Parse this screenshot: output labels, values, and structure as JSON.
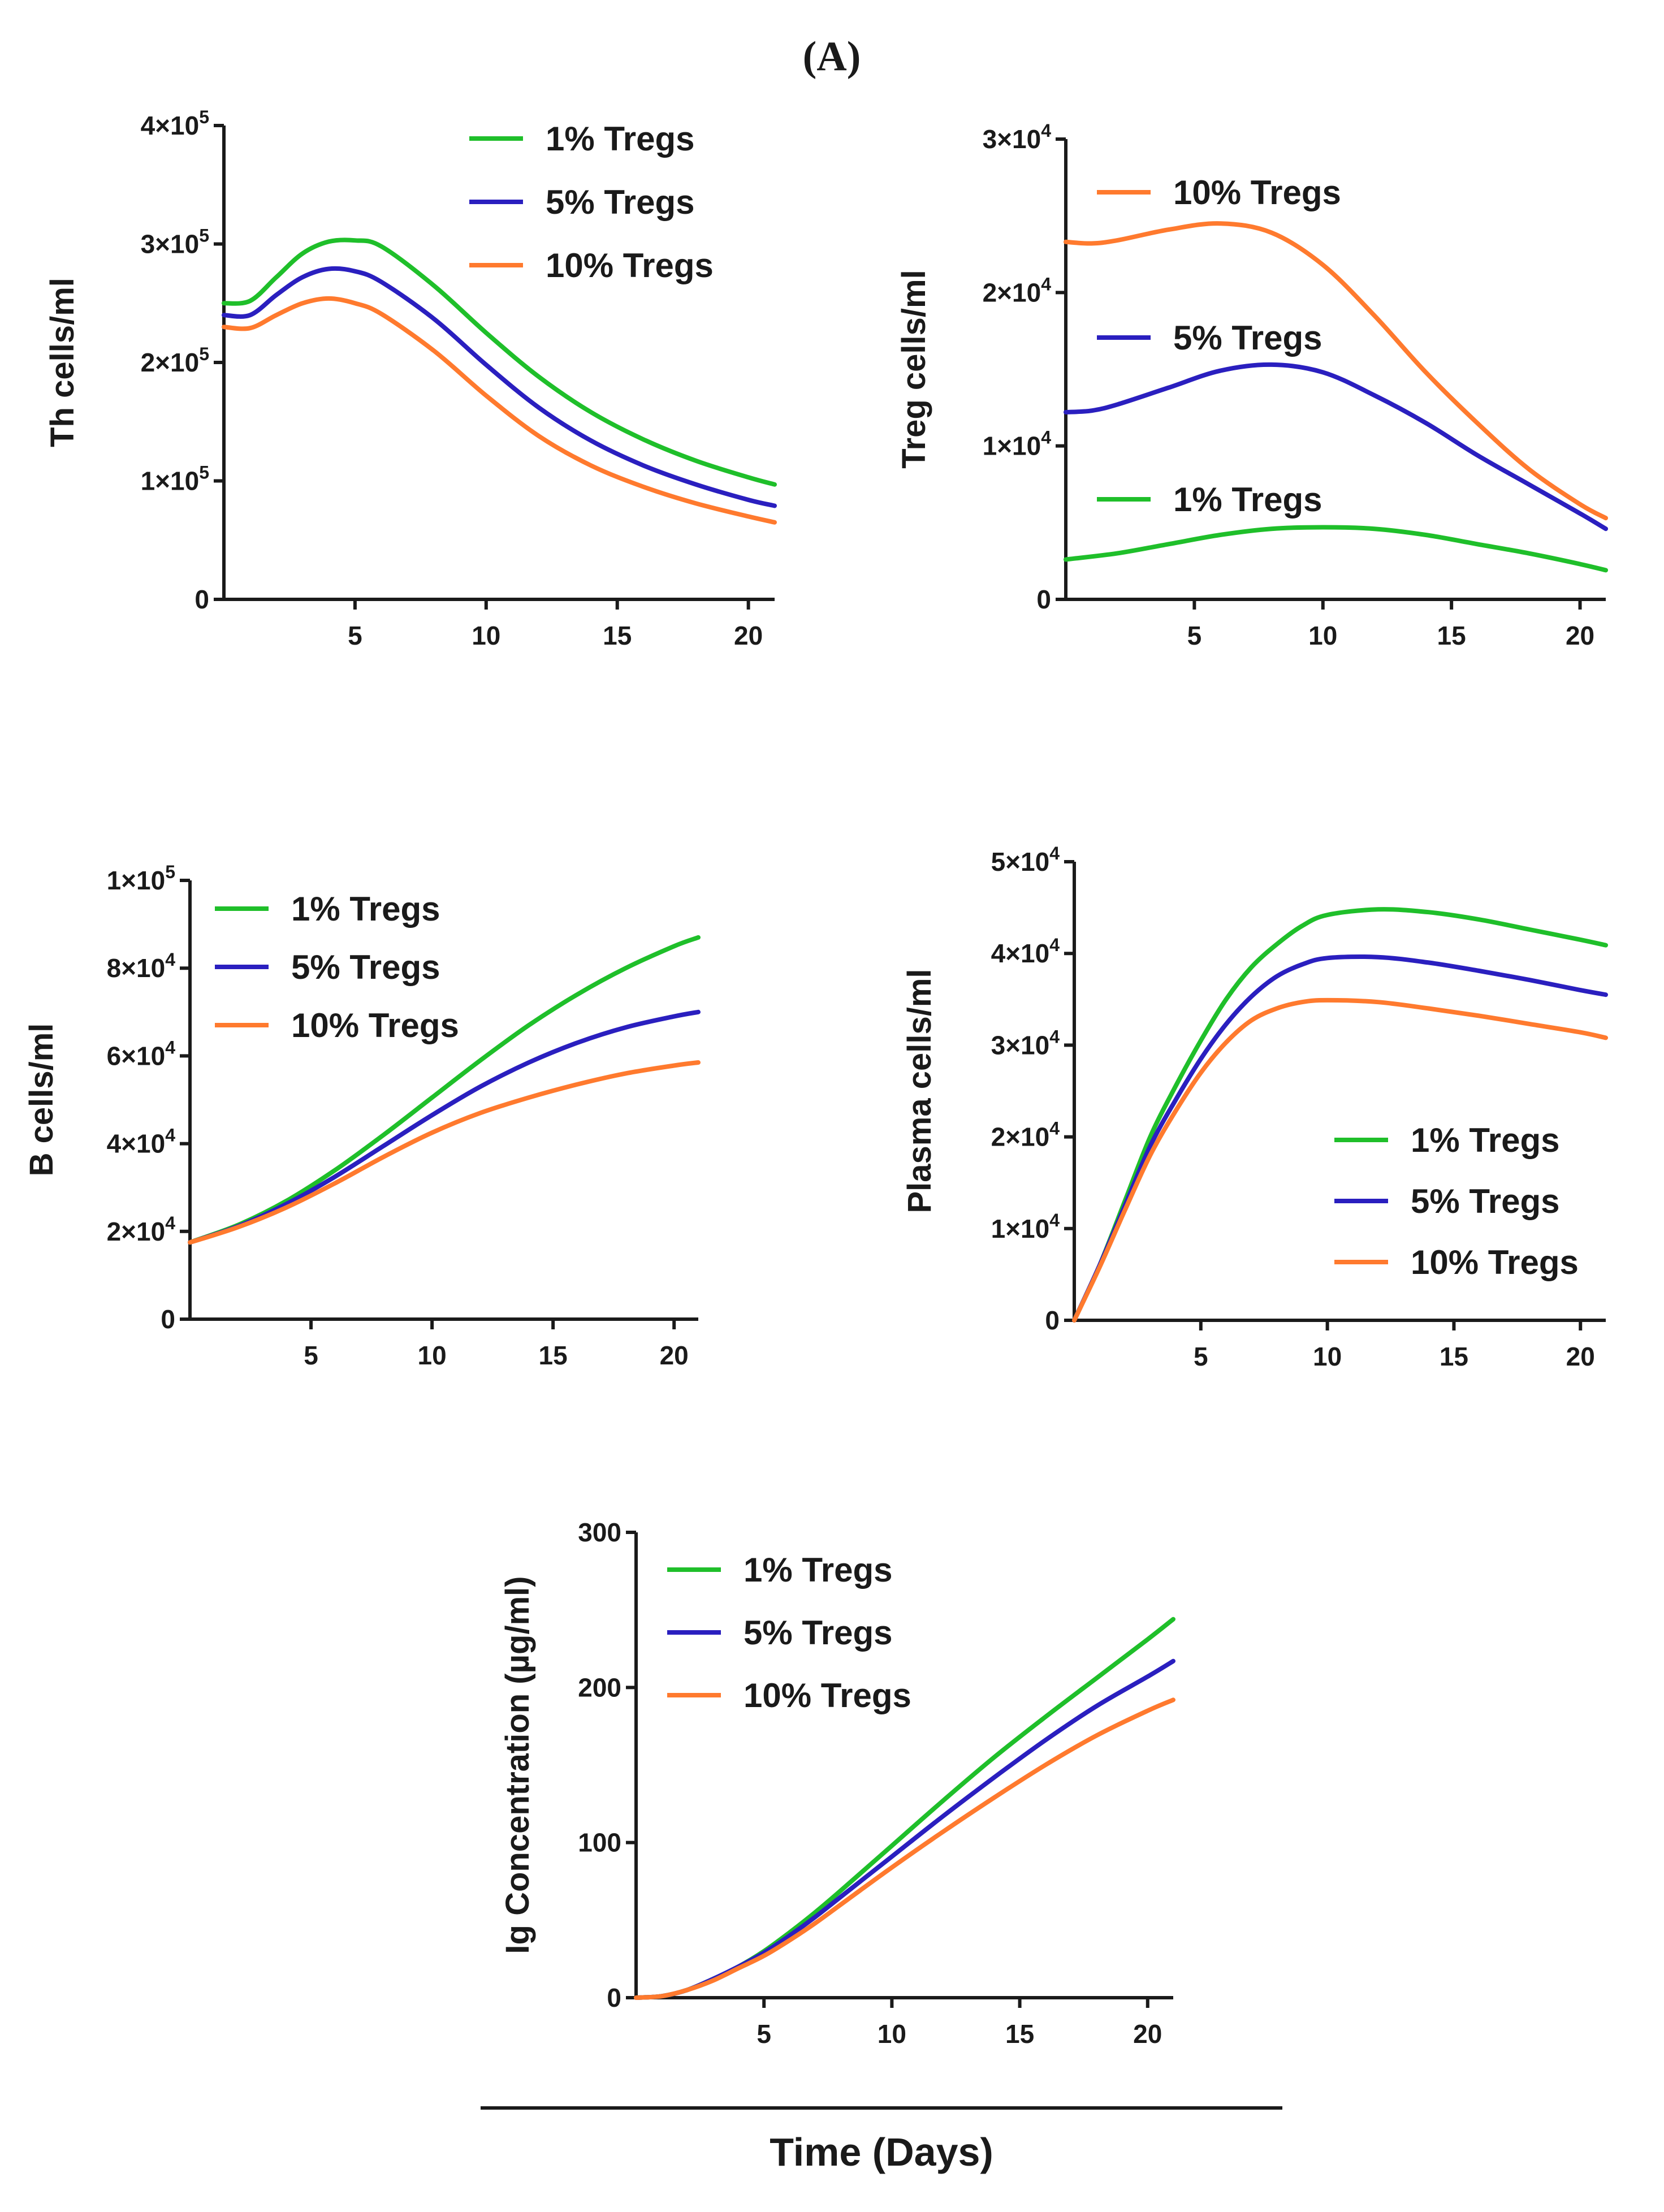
{
  "panel_title": "(A)",
  "footer": {
    "xlabel": "Time (Days)"
  },
  "colors": {
    "1% Tregs": "#1fbf2a",
    "5% Tregs": "#2a1fbf",
    "10% Tregs": "#ff7a2e",
    "axis": "#1a1a1a"
  },
  "chart_data": [
    {
      "type": "line",
      "ylabel": "Th cells/ml",
      "xlim": [
        0,
        21
      ],
      "ylim": [
        0,
        400000
      ],
      "xticks": [
        5,
        10,
        15,
        20
      ],
      "yticks": [
        {
          "value": 0,
          "base": "0",
          "exp": ""
        },
        {
          "value": 100000,
          "base": "1×10",
          "exp": "5"
        },
        {
          "value": 200000,
          "base": "2×10",
          "exp": "5"
        },
        {
          "value": 300000,
          "base": "3×10",
          "exp": "5"
        },
        {
          "value": 400000,
          "base": "4×10",
          "exp": "5"
        }
      ],
      "legend": [
        "1% Tregs",
        "5% Tregs",
        "10% Tregs"
      ],
      "series": [
        {
          "name": "1% Tregs",
          "x": [
            0,
            1,
            2,
            3,
            4,
            5,
            6,
            8,
            10,
            12,
            14,
            16,
            18,
            20,
            21
          ],
          "y": [
            250000,
            252000,
            272000,
            292000,
            302000,
            303000,
            298000,
            265000,
            225000,
            188000,
            158000,
            135000,
            117000,
            103000,
            97000
          ]
        },
        {
          "name": "5% Tregs",
          "x": [
            0,
            1,
            2,
            3,
            4,
            5,
            6,
            8,
            10,
            12,
            14,
            16,
            18,
            20,
            21
          ],
          "y": [
            240000,
            240000,
            257000,
            272000,
            279000,
            277000,
            268000,
            237000,
            198000,
            162000,
            134000,
            113000,
            97000,
            84000,
            79000
          ]
        },
        {
          "name": "10% Tregs",
          "x": [
            0,
            1,
            2,
            3,
            4,
            5,
            6,
            8,
            10,
            12,
            14,
            16,
            18,
            20,
            21
          ],
          "y": [
            230000,
            229000,
            240000,
            250000,
            254000,
            250000,
            241000,
            210000,
            172000,
            138000,
            113000,
            95000,
            81000,
            70000,
            65000
          ]
        }
      ]
    },
    {
      "type": "line",
      "ylabel": "Treg cells/ml",
      "xlim": [
        0,
        21
      ],
      "ylim": [
        0,
        30000
      ],
      "xticks": [
        5,
        10,
        15,
        20
      ],
      "yticks": [
        {
          "value": 0,
          "base": "0",
          "exp": ""
        },
        {
          "value": 10000,
          "base": "1×10",
          "exp": "4"
        },
        {
          "value": 20000,
          "base": "2×10",
          "exp": "4"
        },
        {
          "value": 30000,
          "base": "3×10",
          "exp": "4"
        }
      ],
      "legend": [
        "10% Tregs",
        "5% Tregs",
        "1% Tregs"
      ],
      "series": [
        {
          "name": "10% Tregs",
          "x": [
            0,
            1,
            2,
            4,
            6,
            8,
            10,
            12,
            14,
            16,
            18,
            20,
            21
          ],
          "y": [
            23300,
            23200,
            23400,
            24100,
            24500,
            23900,
            21800,
            18500,
            14800,
            11500,
            8500,
            6200,
            5300
          ]
        },
        {
          "name": "5% Tregs",
          "x": [
            0,
            1,
            2,
            4,
            6,
            8,
            10,
            12,
            14,
            16,
            18,
            20,
            21
          ],
          "y": [
            12200,
            12300,
            12700,
            13800,
            14900,
            15300,
            14800,
            13300,
            11500,
            9400,
            7500,
            5600,
            4600
          ]
        },
        {
          "name": "1% Tregs",
          "x": [
            0,
            2,
            4,
            6,
            8,
            10,
            12,
            14,
            16,
            18,
            20,
            21
          ],
          "y": [
            2600,
            3000,
            3600,
            4200,
            4600,
            4700,
            4600,
            4200,
            3600,
            3000,
            2300,
            1900
          ]
        }
      ]
    },
    {
      "type": "line",
      "ylabel": "B cells/ml",
      "xlim": [
        0,
        21
      ],
      "ylim": [
        0,
        100000
      ],
      "xticks": [
        5,
        10,
        15,
        20
      ],
      "yticks": [
        {
          "value": 0,
          "base": "0",
          "exp": ""
        },
        {
          "value": 20000,
          "base": "2×10",
          "exp": "4"
        },
        {
          "value": 40000,
          "base": "4×10",
          "exp": "4"
        },
        {
          "value": 60000,
          "base": "6×10",
          "exp": "4"
        },
        {
          "value": 80000,
          "base": "8×10",
          "exp": "4"
        },
        {
          "value": 100000,
          "base": "1×10",
          "exp": "5"
        }
      ],
      "legend": [
        "1% Tregs",
        "5% Tregs",
        "10% Tregs"
      ],
      "series": [
        {
          "name": "1% Tregs",
          "x": [
            0,
            2,
            4,
            6,
            8,
            10,
            12,
            14,
            16,
            18,
            20,
            21
          ],
          "y": [
            17500,
            21500,
            27000,
            34000,
            42000,
            50500,
            59000,
            67000,
            74000,
            80000,
            85000,
            87000
          ]
        },
        {
          "name": "5% Tregs",
          "x": [
            0,
            2,
            4,
            6,
            8,
            10,
            12,
            14,
            16,
            18,
            20,
            21
          ],
          "y": [
            17500,
            21200,
            26300,
            32500,
            39500,
            46500,
            53000,
            58500,
            63000,
            66500,
            69000,
            70000
          ]
        },
        {
          "name": "10% Tregs",
          "x": [
            0,
            2,
            4,
            6,
            8,
            10,
            12,
            14,
            16,
            18,
            20,
            21
          ],
          "y": [
            17500,
            21000,
            25500,
            31000,
            37000,
            42500,
            47000,
            50500,
            53500,
            56000,
            57800,
            58500
          ]
        }
      ]
    },
    {
      "type": "line",
      "ylabel": "Plasma cells/ml",
      "xlim": [
        0,
        21
      ],
      "ylim": [
        0,
        50000
      ],
      "xticks": [
        5,
        10,
        15,
        20
      ],
      "yticks": [
        {
          "value": 0,
          "base": "0",
          "exp": ""
        },
        {
          "value": 10000,
          "base": "1×10",
          "exp": "4"
        },
        {
          "value": 20000,
          "base": "2×10",
          "exp": "4"
        },
        {
          "value": 30000,
          "base": "3×10",
          "exp": "4"
        },
        {
          "value": 40000,
          "base": "4×10",
          "exp": "4"
        },
        {
          "value": 50000,
          "base": "5×10",
          "exp": "4"
        }
      ],
      "legend": [
        "1% Tregs",
        "5% Tregs",
        "10% Tregs"
      ],
      "series": [
        {
          "name": "1% Tregs",
          "x": [
            0,
            1,
            2,
            3,
            4,
            5,
            6,
            7,
            8,
            9,
            10,
            12,
            14,
            16,
            18,
            20,
            21
          ],
          "y": [
            0,
            6000,
            13000,
            20000,
            25500,
            30500,
            35000,
            38500,
            41000,
            43000,
            44200,
            44800,
            44500,
            43700,
            42600,
            41500,
            40900
          ]
        },
        {
          "name": "5% Tregs",
          "x": [
            0,
            1,
            2,
            3,
            4,
            5,
            6,
            7,
            8,
            9,
            10,
            12,
            14,
            16,
            18,
            20,
            21
          ],
          "y": [
            0,
            6000,
            12500,
            19000,
            24000,
            28500,
            32300,
            35300,
            37500,
            38800,
            39500,
            39600,
            39000,
            38100,
            37100,
            36000,
            35500
          ]
        },
        {
          "name": "10% Tregs",
          "x": [
            0,
            1,
            2,
            3,
            4,
            5,
            6,
            7,
            8,
            9,
            10,
            12,
            14,
            16,
            18,
            20,
            21
          ],
          "y": [
            0,
            5800,
            12000,
            18000,
            22800,
            27000,
            30300,
            32700,
            34000,
            34700,
            34900,
            34700,
            34000,
            33200,
            32300,
            31400,
            30800
          ]
        }
      ]
    },
    {
      "type": "line",
      "ylabel": "Ig Concentration (µg/ml)",
      "xlim": [
        0,
        21
      ],
      "ylim": [
        0,
        300
      ],
      "xticks": [
        5,
        10,
        15,
        20
      ],
      "yticks": [
        {
          "value": 0,
          "base": "0",
          "exp": ""
        },
        {
          "value": 100,
          "base": "100",
          "exp": ""
        },
        {
          "value": 200,
          "base": "200",
          "exp": ""
        },
        {
          "value": 300,
          "base": "300",
          "exp": ""
        }
      ],
      "legend": [
        "1% Tregs",
        "5% Tregs",
        "10% Tregs"
      ],
      "series": [
        {
          "name": "1% Tregs",
          "x": [
            0,
            1,
            2,
            3,
            4,
            5,
            6,
            7,
            8,
            10,
            12,
            14,
            16,
            18,
            20,
            21
          ],
          "y": [
            0,
            1,
            5,
            12,
            20,
            30,
            42,
            55,
            69,
            98,
            127,
            155,
            181,
            206,
            231,
            244
          ]
        },
        {
          "name": "5% Tregs",
          "x": [
            0,
            1,
            2,
            3,
            4,
            5,
            6,
            7,
            8,
            10,
            12,
            14,
            16,
            18,
            20,
            21
          ],
          "y": [
            0,
            1,
            5,
            12,
            20,
            29,
            40,
            52,
            65,
            91,
            117,
            142,
            166,
            188,
            207,
            217
          ]
        },
        {
          "name": "10% Tregs",
          "x": [
            0,
            1,
            2,
            3,
            4,
            5,
            6,
            7,
            8,
            10,
            12,
            14,
            16,
            18,
            20,
            21
          ],
          "y": [
            0,
            1,
            5,
            11,
            19,
            27,
            37,
            48,
            60,
            84,
            107,
            129,
            150,
            169,
            185,
            192
          ]
        }
      ]
    }
  ]
}
